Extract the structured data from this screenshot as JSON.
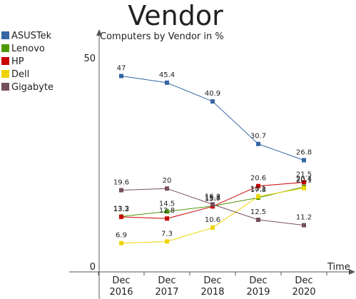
{
  "chart_data": {
    "type": "line",
    "title": "Vendor",
    "subtitle": "Computers by Vendor in %",
    "xlabel": "Time",
    "ylabel": "",
    "categories": [
      "Dec\n2016",
      "Dec\n2017",
      "Dec\n2018",
      "Dec\n2019",
      "Dec\n2020"
    ],
    "ylim": [
      0,
      50
    ],
    "yticks": [
      0,
      50
    ],
    "legend": "left",
    "series": [
      {
        "name": "ASUSTek",
        "color": "#3465a4",
        "values": [
          47,
          45.4,
          40.9,
          30.7,
          26.8
        ]
      },
      {
        "name": "Lenovo",
        "color": "#4e9a06",
        "values": [
          13.3,
          14.5,
          15.8,
          17.8,
          20.4
        ]
      },
      {
        "name": "HP",
        "color": "#cc0000",
        "values": [
          13.2,
          12.8,
          15.7,
          20.6,
          21.5
        ]
      },
      {
        "name": "Dell",
        "color": "#edd400",
        "values": [
          6.9,
          7.3,
          10.6,
          18.1,
          20.1
        ]
      },
      {
        "name": "Gigabyte",
        "color": "#75505b",
        "values": [
          19.6,
          20,
          16.2,
          12.5,
          11.2
        ]
      }
    ]
  }
}
